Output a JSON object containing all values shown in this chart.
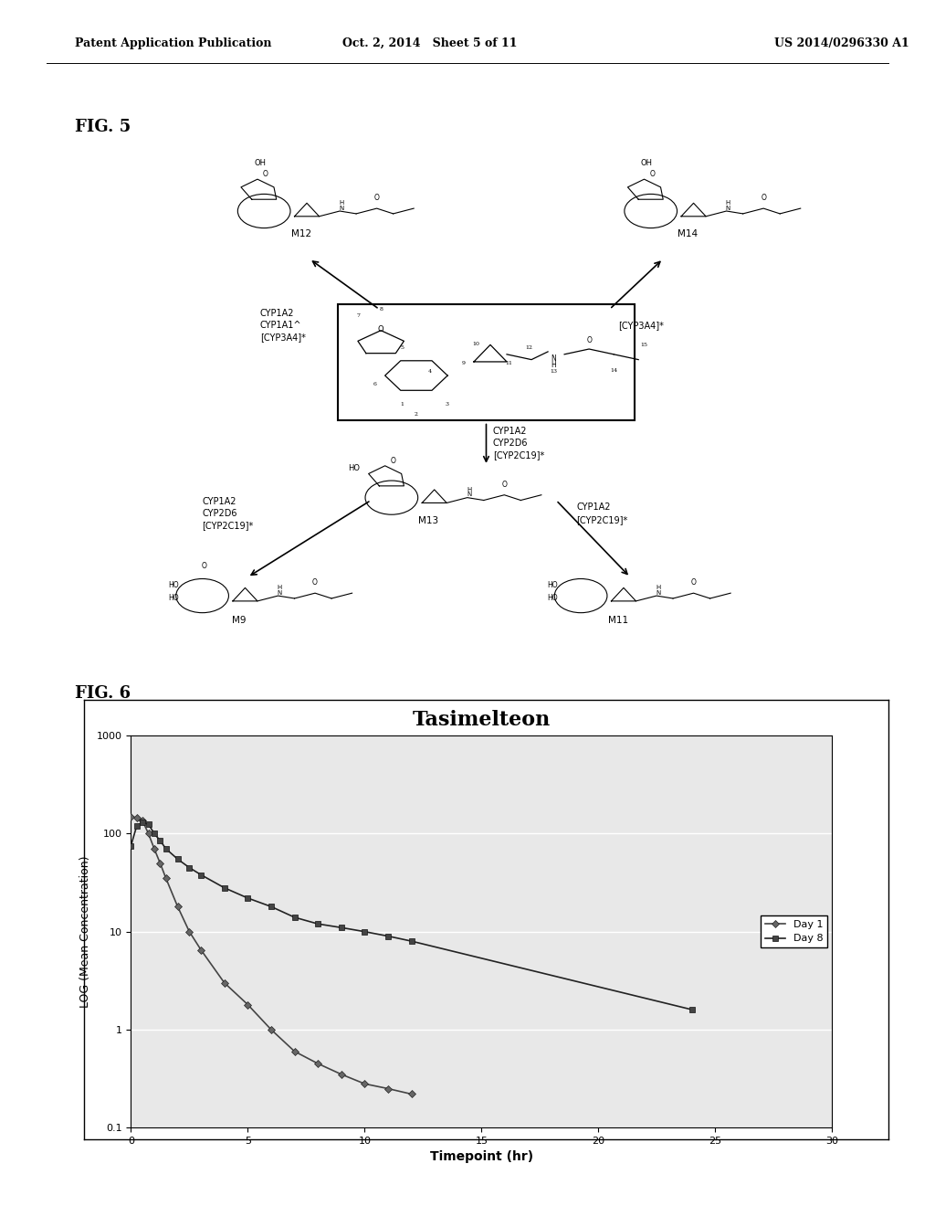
{
  "header_left": "Patent Application Publication",
  "header_mid": "Oct. 2, 2014   Sheet 5 of 11",
  "header_right": "US 2014/0296330 A1",
  "fig5_label": "FIG. 5",
  "fig6_label": "FIG. 6",
  "graph_title": "Tasimelteon",
  "xlabel": "Timepoint (hr)",
  "ylabel": "LOG (Mean Concentration)",
  "xlim": [
    0,
    30
  ],
  "xticks": [
    0,
    5,
    10,
    15,
    20,
    25,
    30
  ],
  "day1_x": [
    0,
    0.25,
    0.5,
    0.75,
    1.0,
    1.25,
    1.5,
    2.0,
    2.5,
    3.0,
    4.0,
    5.0,
    6.0,
    7.0,
    8.0,
    9.0,
    10.0,
    11.0,
    12.0
  ],
  "day1_y": [
    150,
    145,
    135,
    100,
    70,
    50,
    35,
    18,
    10,
    6.5,
    3.0,
    1.8,
    1.0,
    0.6,
    0.45,
    0.35,
    0.28,
    0.25,
    0.22
  ],
  "day8_x": [
    0,
    0.25,
    0.5,
    0.75,
    1.0,
    1.25,
    1.5,
    2.0,
    2.5,
    3.0,
    4.0,
    5.0,
    6.0,
    7.0,
    8.0,
    9.0,
    10.0,
    11.0,
    12.0,
    24.0
  ],
  "day8_y": [
    75,
    120,
    130,
    125,
    100,
    85,
    70,
    55,
    45,
    38,
    28,
    22,
    18,
    14,
    12,
    11,
    10,
    9.0,
    8.0,
    1.6
  ],
  "day1_color": "#555555",
  "day8_color": "#333333",
  "background_color": "#ffffff",
  "legend_day1": "Day 1",
  "legend_day8": "Day 8"
}
